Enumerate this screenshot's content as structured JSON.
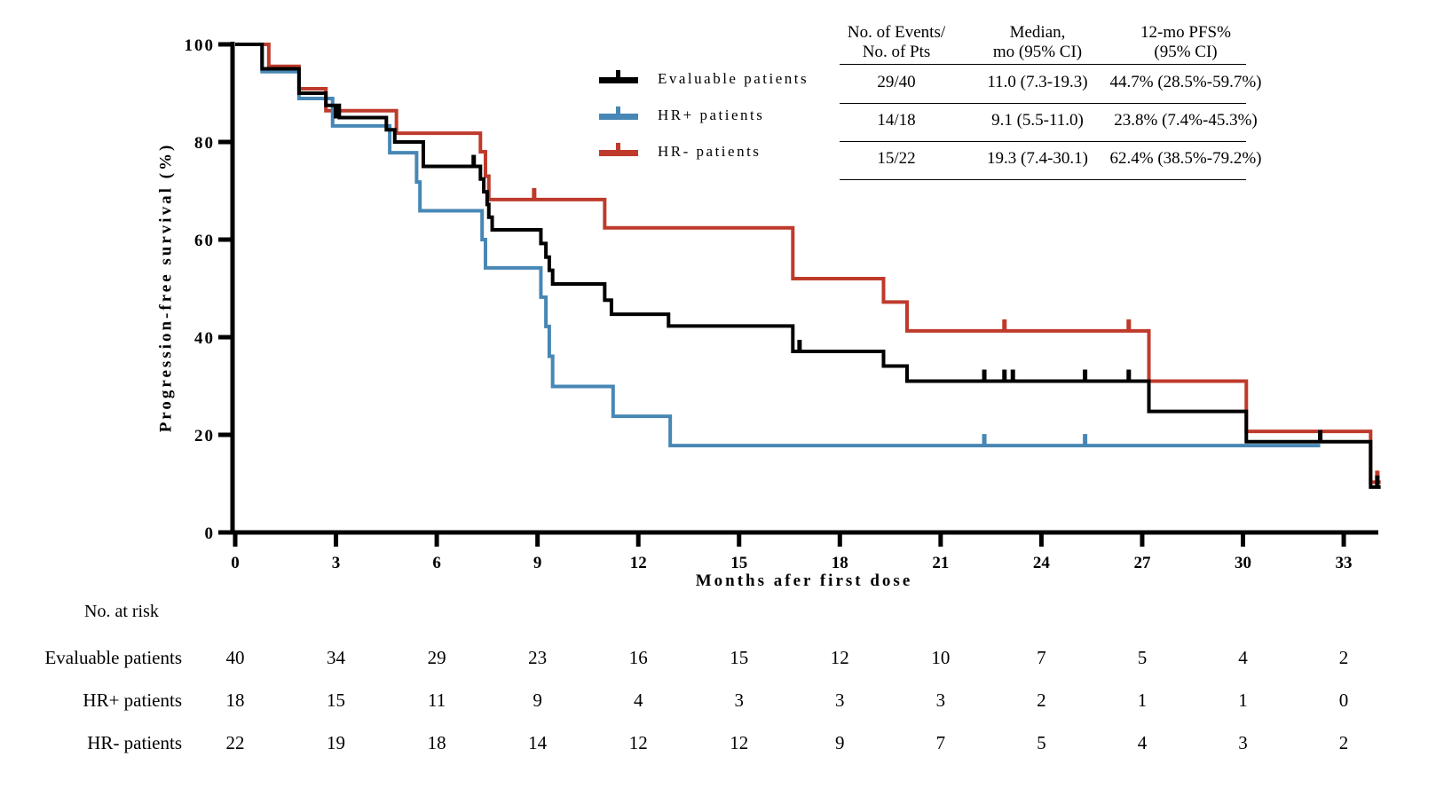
{
  "y_axis": {
    "label": "Progression-free survival (%)",
    "ticks": [
      100,
      80,
      60,
      40,
      20,
      0
    ]
  },
  "x_axis": {
    "label": "Months afer first dose",
    "ticks": [
      0,
      3,
      6,
      9,
      12,
      15,
      18,
      21,
      24,
      27,
      30,
      33
    ]
  },
  "legend": {
    "items": [
      {
        "label": "Evaluable patients",
        "color": "#000000"
      },
      {
        "label": "HR+ patients",
        "color": "#4787b5"
      },
      {
        "label": "HR- patients",
        "color": "#bf3a2b"
      }
    ]
  },
  "stats_table": {
    "headers": [
      [
        "No. of Events/",
        "No. of Pts"
      ],
      [
        "Median,",
        "mo (95% CI)"
      ],
      [
        "12-mo PFS%",
        "(95% CI)"
      ]
    ],
    "rows": [
      {
        "events": "29/40",
        "median": "11.0 (7.3-19.3)",
        "pfs": "44.7% (28.5%-59.7%)"
      },
      {
        "events": "14/18",
        "median": "9.1 (5.5-11.0)",
        "pfs": "23.8% (7.4%-45.3%)"
      },
      {
        "events": "15/22",
        "median": "19.3 (7.4-30.1)",
        "pfs": "62.4% (38.5%-79.2%)"
      }
    ]
  },
  "risk_table": {
    "title": "No. at risk",
    "months": [
      0,
      3,
      6,
      9,
      12,
      15,
      18,
      21,
      24,
      27,
      30,
      33
    ],
    "rows": [
      {
        "label": "Evaluable patients",
        "values": [
          40,
          34,
          29,
          23,
          16,
          15,
          12,
          10,
          7,
          5,
          4,
          2
        ]
      },
      {
        "label": "HR+ patients",
        "values": [
          18,
          15,
          11,
          9,
          4,
          3,
          3,
          3,
          2,
          1,
          1,
          0
        ]
      },
      {
        "label": "HR- patients",
        "values": [
          22,
          19,
          18,
          14,
          12,
          12,
          9,
          7,
          5,
          4,
          3,
          2
        ]
      }
    ]
  },
  "chart_data": {
    "type": "line",
    "subtype": "kaplan-meier-step",
    "title": "",
    "xlabel": "Months afer first dose",
    "ylabel": "Progression-free survival (%)",
    "xlim": [
      0,
      34.5
    ],
    "ylim": [
      0,
      100
    ],
    "x_ticks": [
      0,
      3,
      6,
      9,
      12,
      15,
      18,
      21,
      24,
      27,
      30,
      33
    ],
    "y_ticks": [
      0,
      20,
      40,
      60,
      80,
      100
    ],
    "grid": false,
    "legend_position": "upper-center-left",
    "series": [
      {
        "name": "Evaluable patients",
        "color": "#000000",
        "n": 40,
        "events": 29,
        "median_months": "11.0 (7.3-19.3)",
        "pfs_12mo": "44.7% (28.5%-59.7%)",
        "steps": [
          [
            0,
            100
          ],
          [
            0.8,
            95
          ],
          [
            1.9,
            90
          ],
          [
            2.7,
            87.5
          ],
          [
            3.1,
            85
          ],
          [
            4.5,
            82.5
          ],
          [
            4.75,
            80
          ],
          [
            5.6,
            75
          ],
          [
            7.3,
            72.4
          ],
          [
            7.4,
            69.8
          ],
          [
            7.5,
            67.2
          ],
          [
            7.55,
            64.6
          ],
          [
            7.65,
            62
          ],
          [
            9.1,
            59.2
          ],
          [
            9.25,
            56.4
          ],
          [
            9.35,
            53.7
          ],
          [
            9.45,
            50.9
          ],
          [
            11,
            47.6
          ],
          [
            11.2,
            44.7
          ],
          [
            12.9,
            42.3
          ],
          [
            16.6,
            37.1
          ],
          [
            19.3,
            34.1
          ],
          [
            20,
            31
          ],
          [
            27.2,
            24.8
          ],
          [
            30.1,
            18.6
          ],
          [
            33.8,
            9.3
          ],
          [
            34.1,
            9.3
          ]
        ],
        "censors": [
          [
            3,
            85
          ],
          [
            7.1,
            75
          ],
          [
            16.8,
            37.1
          ],
          [
            22.3,
            31
          ],
          [
            22.9,
            31
          ],
          [
            23.15,
            31
          ],
          [
            25.3,
            31
          ],
          [
            26.6,
            31
          ],
          [
            32.3,
            18.6
          ],
          [
            34,
            9.3
          ]
        ]
      },
      {
        "name": "HR+ patients",
        "color": "#4787b5",
        "n": 18,
        "events": 14,
        "median_months": "9.1 (5.5-11.0)",
        "pfs_12mo": "23.8% (7.4%-45.3%)",
        "steps": [
          [
            0,
            100
          ],
          [
            0.8,
            94.4
          ],
          [
            1.9,
            88.9
          ],
          [
            2.9,
            83.3
          ],
          [
            4.6,
            77.8
          ],
          [
            5.4,
            71.8
          ],
          [
            5.5,
            65.9
          ],
          [
            7.35,
            60
          ],
          [
            7.45,
            54.2
          ],
          [
            9.1,
            48.2
          ],
          [
            9.25,
            42.2
          ],
          [
            9.35,
            36.1
          ],
          [
            9.45,
            29.9
          ],
          [
            11.25,
            23.8
          ],
          [
            12.95,
            17.8
          ],
          [
            32.3,
            17.8
          ]
        ],
        "censors": [
          [
            22.3,
            17.8
          ],
          [
            25.3,
            17.8
          ]
        ]
      },
      {
        "name": "HR- patients",
        "color": "#bf3a2b",
        "n": 22,
        "events": 15,
        "median_months": "19.3 (7.4-30.1)",
        "pfs_12mo": "62.4% (38.5%-79.2%)",
        "steps": [
          [
            0,
            100
          ],
          [
            1,
            95.5
          ],
          [
            1.9,
            90.9
          ],
          [
            2.7,
            86.4
          ],
          [
            4.8,
            81.8
          ],
          [
            7.3,
            78
          ],
          [
            7.45,
            73
          ],
          [
            7.55,
            68.2
          ],
          [
            11,
            62.4
          ],
          [
            16.6,
            52
          ],
          [
            19.3,
            47.2
          ],
          [
            20,
            41.3
          ],
          [
            27.2,
            31
          ],
          [
            30.1,
            20.7
          ],
          [
            33.8,
            10.3
          ],
          [
            34.1,
            10.3
          ]
        ],
        "censors": [
          [
            8.9,
            68.2
          ],
          [
            22.9,
            41.3
          ],
          [
            26.6,
            41.3
          ],
          [
            34,
            10.3
          ]
        ]
      }
    ]
  }
}
